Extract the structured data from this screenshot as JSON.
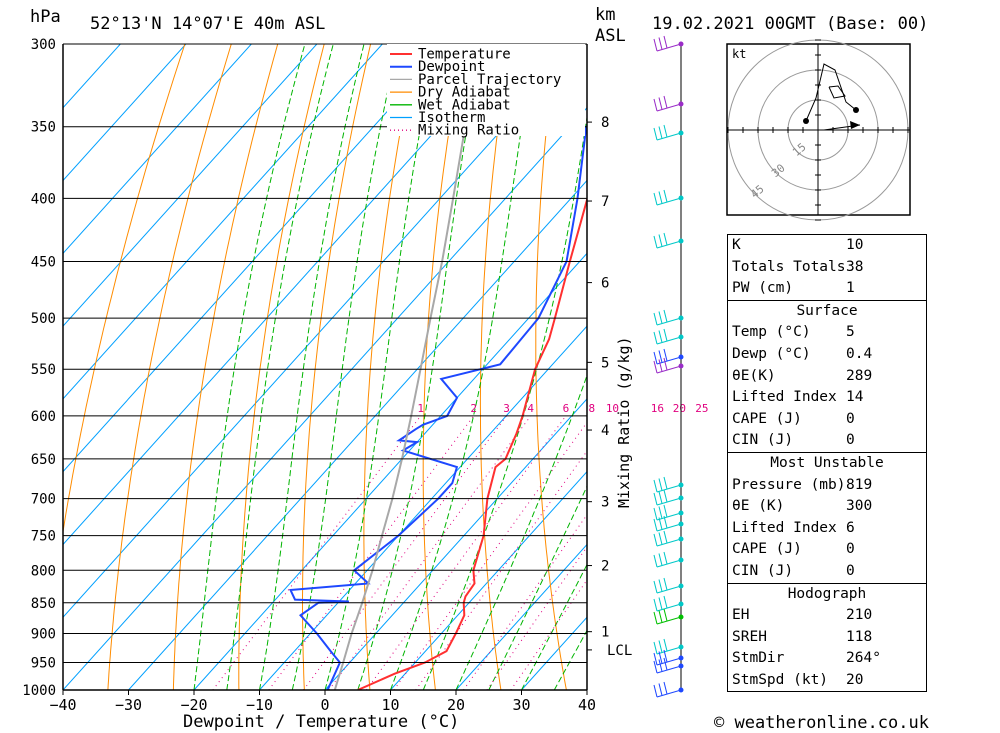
{
  "header": {
    "location": "52°13'N 14°07'E 40m ASL",
    "datetime": "19.02.2021 00GMT (Base: 00)",
    "hpa_label": "hPa",
    "km_label": "km",
    "asl_label": "ASL"
  },
  "footer": {
    "copyright": "© weatheronline.co.uk"
  },
  "chart_data": {
    "type": "line",
    "title": "",
    "xlabel": "Dewpoint / Temperature (°C)",
    "ylabel": "hPa",
    "xlim": [
      -40,
      40
    ],
    "ylim": [
      1000,
      300
    ],
    "y_scale": "log",
    "x_ticks": [
      "−40",
      "−30",
      "−20",
      "−10",
      "0",
      "10",
      "20",
      "30",
      "40"
    ],
    "x_tick_values": [
      -40,
      -30,
      -20,
      -10,
      0,
      10,
      20,
      30,
      40
    ],
    "pressure_ticks": [
      300,
      350,
      400,
      450,
      500,
      550,
      600,
      650,
      700,
      750,
      800,
      850,
      900,
      950,
      1000
    ],
    "km_ticks": [
      {
        "label": "8",
        "p": 347
      },
      {
        "label": "7",
        "p": 402
      },
      {
        "label": "6",
        "p": 468
      },
      {
        "label": "5",
        "p": 543
      },
      {
        "label": "4",
        "p": 616
      },
      {
        "label": "3",
        "p": 704
      },
      {
        "label": "2",
        "p": 793
      },
      {
        "label": "1",
        "p": 897
      },
      {
        "label": "LCL",
        "p": 928
      }
    ],
    "right_label": "Mixing Ratio (g/kg)",
    "mixing_ratio_labels": [
      "1",
      "2",
      "3",
      "4",
      "6",
      "8",
      "10",
      "16",
      "20",
      "25"
    ],
    "mixing_ratio_values": [
      1,
      2,
      3,
      4,
      6,
      8,
      10,
      16,
      20,
      25
    ],
    "legend": [
      "Temperature",
      "Dewpoint",
      "Parcel Trajectory",
      "Dry Adiabat",
      "Wet Adiabat",
      "Isotherm",
      "Mixing Ratio"
    ],
    "legend_placement": "top-left",
    "colors": {
      "temperature": "#ff3030",
      "dewpoint": "#1e48ff",
      "parcel": "#a8a8a8",
      "dry_adiabat": "#ff8c00",
      "wet_adiabat": "#00b400",
      "isotherm": "#00a0ff",
      "mixing_ratio": "#e0007f",
      "wind": "#00c8c8"
    },
    "series": [
      {
        "name": "Temperature",
        "points": [
          [
            1000,
            5
          ],
          [
            970,
            8.4
          ],
          [
            950,
            11.5
          ],
          [
            930,
            13.2
          ],
          [
            900,
            12.2
          ],
          [
            870,
            11
          ],
          [
            850,
            9.2
          ],
          [
            840,
            8.6
          ],
          [
            820,
            8.2
          ],
          [
            800,
            6.2
          ],
          [
            750,
            3
          ],
          [
            700,
            -1.5
          ],
          [
            660,
            -4.6
          ],
          [
            650,
            -4.2
          ],
          [
            620,
            -6
          ],
          [
            600,
            -7.5
          ],
          [
            550,
            -12
          ],
          [
            520,
            -14
          ],
          [
            500,
            -16
          ],
          [
            450,
            -21.5
          ],
          [
            400,
            -27.5
          ],
          [
            350,
            -34.5
          ],
          [
            320,
            -38.5
          ],
          [
            300,
            -40.5
          ]
        ]
      },
      {
        "name": "Dewpoint",
        "points": [
          [
            1000,
            0.4
          ],
          [
            950,
            -1.5
          ],
          [
            930,
            -4.5
          ],
          [
            900,
            -9
          ],
          [
            870,
            -14
          ],
          [
            850,
            -13
          ],
          [
            848,
            -8.5
          ],
          [
            845,
            -17
          ],
          [
            830,
            -19
          ],
          [
            820,
            -8
          ],
          [
            800,
            -12
          ],
          [
            750,
            -10
          ],
          [
            700,
            -9
          ],
          [
            680,
            -9
          ],
          [
            660,
            -10.5
          ],
          [
            640,
            -21
          ],
          [
            630,
            -20
          ],
          [
            628,
            -23
          ],
          [
            615,
            -22
          ],
          [
            610,
            -21.5
          ],
          [
            600,
            -19
          ],
          [
            580,
            -20
          ],
          [
            560,
            -25
          ],
          [
            545,
            -18
          ],
          [
            500,
            -18.5
          ],
          [
            450,
            -22
          ],
          [
            400,
            -29
          ],
          [
            350,
            -37.5
          ],
          [
            330,
            -38
          ],
          [
            310,
            -39
          ],
          [
            300,
            -40
          ]
        ]
      },
      {
        "name": "Parcel Trajectory",
        "points": [
          [
            1000,
            1.5
          ],
          [
            950,
            -1
          ],
          [
            900,
            -3.7
          ],
          [
            850,
            -6.3
          ],
          [
            800,
            -9.2
          ],
          [
            750,
            -12.5
          ],
          [
            700,
            -16
          ],
          [
            650,
            -20
          ],
          [
            600,
            -24.5
          ],
          [
            550,
            -29.5
          ],
          [
            500,
            -35
          ],
          [
            450,
            -41
          ],
          [
            400,
            -48
          ],
          [
            350,
            -56
          ],
          [
            300,
            -65
          ]
        ]
      }
    ],
    "wind_barbs_pressures": [
      300,
      335,
      355,
      385,
      420,
      470,
      520,
      530,
      540,
      1000
    ]
  },
  "hodograph": {
    "unit": "kt",
    "rings": [
      "15",
      "30",
      "45"
    ]
  },
  "indices": {
    "general": [
      {
        "k": "K",
        "v": "10"
      },
      {
        "k": "Totals Totals",
        "v": "38"
      },
      {
        "k": "PW (cm)",
        "v": "1"
      }
    ],
    "surface_title": "Surface",
    "surface": [
      {
        "k": "Temp (°C)",
        "v": "5"
      },
      {
        "k": "Dewp (°C)",
        "v": "0.4"
      },
      {
        "k": "θE(K)",
        "v": "289"
      },
      {
        "k": "Lifted Index",
        "v": "14"
      },
      {
        "k": "CAPE (J)",
        "v": "0"
      },
      {
        "k": "CIN (J)",
        "v": "0"
      }
    ],
    "mu_title": "Most Unstable",
    "mu": [
      {
        "k": "Pressure (mb)",
        "v": "819"
      },
      {
        "k": "θE (K)",
        "v": "300"
      },
      {
        "k": "Lifted Index",
        "v": "6"
      },
      {
        "k": "CAPE (J)",
        "v": "0"
      },
      {
        "k": "CIN (J)",
        "v": "0"
      }
    ],
    "hodo_title": "Hodograph",
    "hodo": [
      {
        "k": "EH",
        "v": "210"
      },
      {
        "k": "SREH",
        "v": "118"
      },
      {
        "k": "StmDir",
        "v": "264°"
      },
      {
        "k": "StmSpd (kt)",
        "v": "20"
      }
    ]
  }
}
